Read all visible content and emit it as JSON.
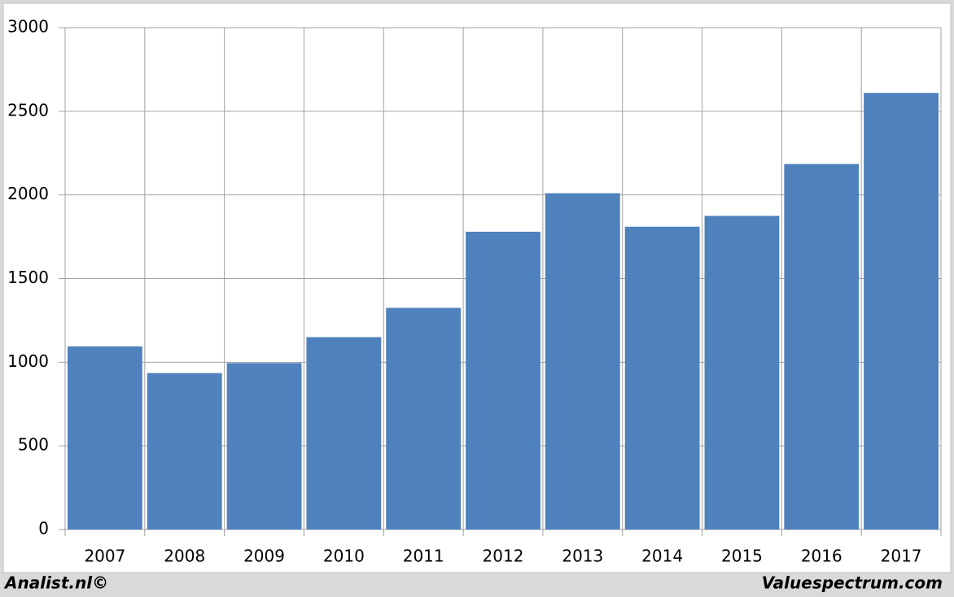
{
  "chart_data": {
    "type": "bar",
    "categories": [
      "2007",
      "2008",
      "2009",
      "2010",
      "2011",
      "2012",
      "2013",
      "2014",
      "2015",
      "2016",
      "2017"
    ],
    "values": [
      1095,
      935,
      995,
      1150,
      1325,
      1780,
      2010,
      1810,
      1875,
      2185,
      2610
    ],
    "color": "#4f81bd",
    "ylim": [
      0,
      3000
    ],
    "yticks": [
      0,
      500,
      1000,
      1500,
      2000,
      2500,
      3000
    ],
    "grid": true,
    "footer_left": "Analist.nl©",
    "footer_right": "Valuespectrum.com"
  }
}
